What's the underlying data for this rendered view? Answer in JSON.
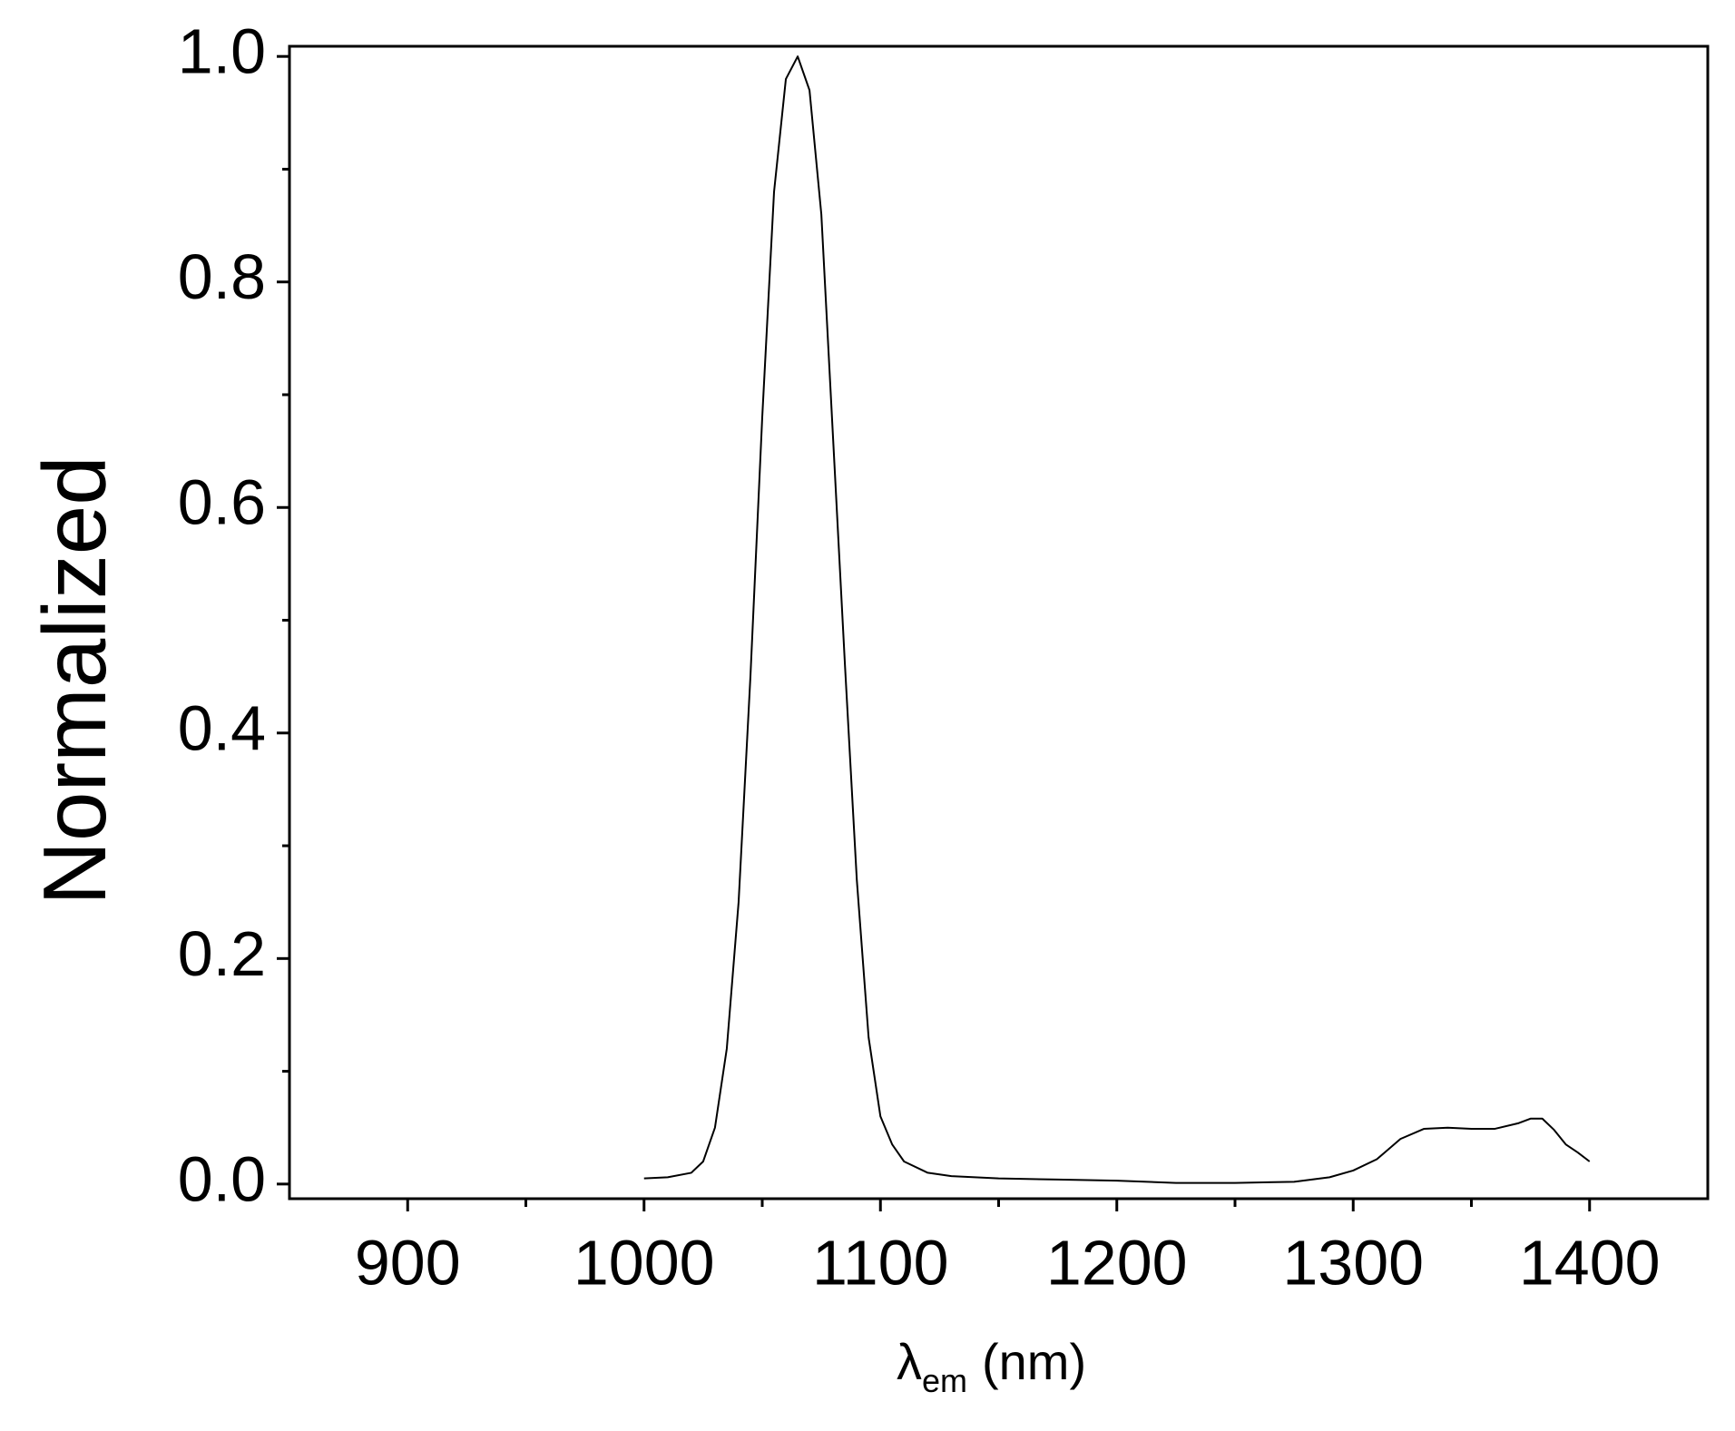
{
  "chart_data": {
    "type": "line",
    "y_label": "Normalized",
    "x_label_parts": [
      "λ",
      "em",
      "(nm)"
    ],
    "x": [
      1000,
      1010,
      1020,
      1025,
      1030,
      1035,
      1040,
      1045,
      1050,
      1055,
      1060,
      1065,
      1070,
      1075,
      1080,
      1085,
      1090,
      1095,
      1100,
      1105,
      1110,
      1120,
      1130,
      1150,
      1175,
      1200,
      1225,
      1250,
      1275,
      1290,
      1300,
      1310,
      1320,
      1330,
      1340,
      1350,
      1360,
      1370,
      1375,
      1380,
      1385,
      1390,
      1395,
      1400
    ],
    "series": [
      {
        "color": "#000000",
        "values": [
          0.005,
          0.006,
          0.01,
          0.02,
          0.05,
          0.12,
          0.25,
          0.45,
          0.68,
          0.88,
          0.98,
          1.0,
          0.97,
          0.86,
          0.66,
          0.46,
          0.27,
          0.13,
          0.06,
          0.035,
          0.02,
          0.01,
          0.007,
          0.005,
          0.004,
          0.003,
          0.001,
          0.001,
          0.002,
          0.006,
          0.012,
          0.022,
          0.04,
          0.049,
          0.05,
          0.049,
          0.049,
          0.054,
          0.058,
          0.058,
          0.048,
          0.035,
          0.028,
          0.02
        ]
      }
    ],
    "xlim": [
      850,
      1450
    ],
    "ylim": [
      -0.013,
      1.009
    ],
    "xticks": [
      900,
      1000,
      1100,
      1200,
      1300,
      1400
    ],
    "yticks": [
      {
        "value": 0,
        "label": "0.0"
      },
      0.2,
      0.4,
      0.6,
      0.8,
      {
        "value": 1,
        "label": "1.0"
      }
    ],
    "grid": false
  }
}
